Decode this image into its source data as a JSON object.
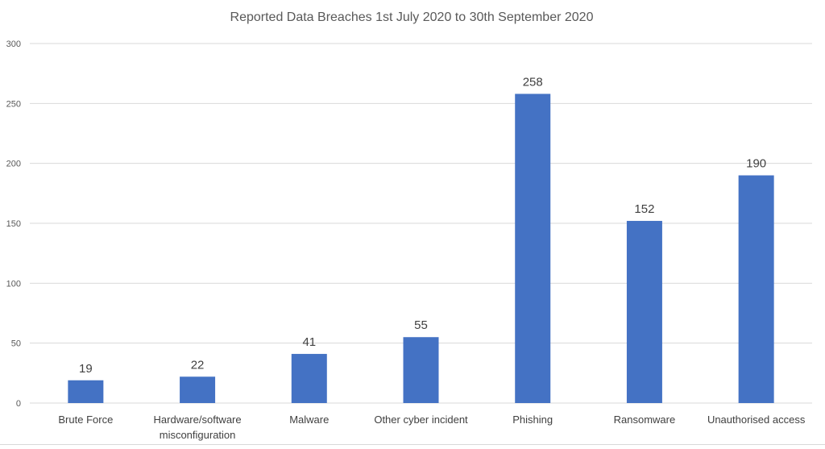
{
  "chart_data": {
    "type": "bar",
    "title": "Reported Data Breaches 1st July 2020 to 30th September 2020",
    "xlabel": "",
    "ylabel": "",
    "categories": [
      [
        "Brute Force"
      ],
      [
        "Hardware/software",
        "misconfiguration"
      ],
      [
        "Malware"
      ],
      [
        "Other cyber incident"
      ],
      [
        "Phishing"
      ],
      [
        "Ransomware"
      ],
      [
        "Unauthorised access"
      ]
    ],
    "values": [
      19,
      22,
      41,
      55,
      258,
      152,
      190
    ],
    "ylim": [
      0,
      300
    ],
    "yticks": [
      0,
      50,
      100,
      150,
      200,
      250,
      300
    ],
    "grid": true,
    "data_labels": true,
    "bar_color": "#4472c4"
  }
}
